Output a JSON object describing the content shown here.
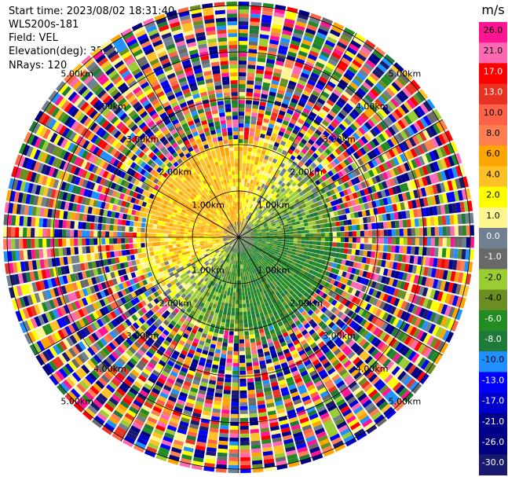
{
  "header": {
    "start_time": "Start time: 2023/08/02 18:31:40",
    "instrument": "WLS200s-181",
    "field": "Field: VEL",
    "elevation": "Elevation(deg): 35.30",
    "nrays": "NRays: 120"
  },
  "colorbar": {
    "unit": "m/s",
    "ticks": [
      "26.0",
      "21.0",
      "17.0",
      "13.0",
      "10.0",
      "8.0",
      "6.0",
      "4.0",
      "2.0",
      "1.0",
      "0.0",
      "-1.0",
      "-2.0",
      "-4.0",
      "-6.0",
      "-8.0",
      "-10.0",
      "-13.0",
      "-17.0",
      "-21.0",
      "-26.0",
      "-30.0"
    ],
    "colors": [
      "#ff1493",
      "#ff69b4",
      "#ff0000",
      "#e83222",
      "#ff6347",
      "#ff7f50",
      "#ffa500",
      "#ffc125",
      "#ffff00",
      "#fff68f",
      "#708090",
      "#696969",
      "#9acd32",
      "#6b8e23",
      "#228b22",
      "#1f7a3a",
      "#1e90ff",
      "#0000ff",
      "#0000cd",
      "#00008b",
      "#000080",
      "#191970"
    ]
  },
  "chart_data": {
    "type": "polar-ppi",
    "field": "VEL",
    "units": "m/s",
    "nrays": 120,
    "range_rings_km": [
      "1.00km",
      "2.00km",
      "3.00km",
      "4.00km",
      "5.00km"
    ],
    "colorbar_range": [
      -30.0,
      26.0
    ],
    "pattern": {
      "near_field": "positive velocities (+2 to +6 m/s, yellow/orange) toward north and west; negative velocities (-2 to -6 m/s, green) toward south and east; near-zero (grey) along the transition",
      "far_field": "noisy multicolored returns beyond ~2.5 km"
    }
  }
}
